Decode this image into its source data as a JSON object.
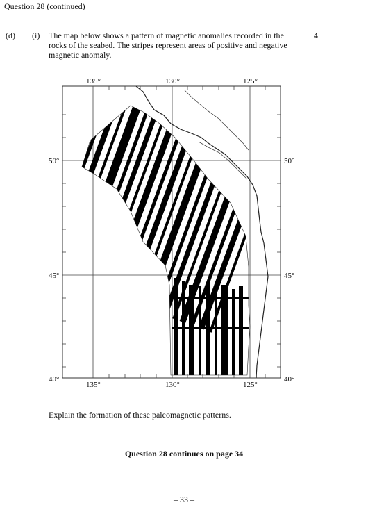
{
  "header": {
    "title": "Question 28 (continued)"
  },
  "question": {
    "part": "(d)",
    "subpart": "(i)",
    "text": "The map below shows a pattern of magnetic anomalies recorded in the rocks of the seabed. The stripes represent areas of positive and negative magnetic anomaly.",
    "marks": "4"
  },
  "map": {
    "longitude_labels": [
      "135°",
      "130°",
      "125°"
    ],
    "latitude_labels": [
      "50°",
      "45°",
      "40°"
    ],
    "colors": {
      "positive": "#000000",
      "negative": "#ffffff",
      "frame": "#333333"
    }
  },
  "instruction": "Explain the formation of these paleomagnetic patterns.",
  "continues": "Question 28 continues on page 34",
  "page_number": "– 33 –"
}
